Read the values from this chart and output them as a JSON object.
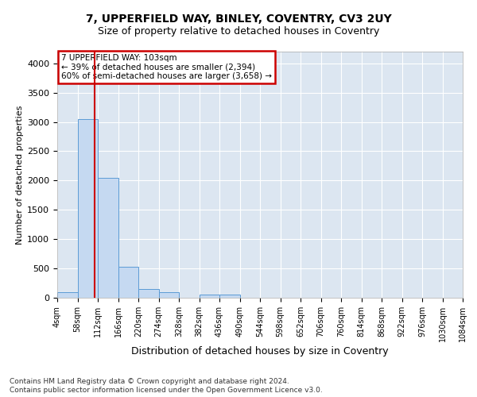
{
  "title1": "7, UPPERFIELD WAY, BINLEY, COVENTRY, CV3 2UY",
  "title2": "Size of property relative to detached houses in Coventry",
  "xlabel": "Distribution of detached houses by size in Coventry",
  "ylabel": "Number of detached properties",
  "footnote1": "Contains HM Land Registry data © Crown copyright and database right 2024.",
  "footnote2": "Contains public sector information licensed under the Open Government Licence v3.0.",
  "annotation_line1": "7 UPPERFIELD WAY: 103sqm",
  "annotation_line2": "← 39% of detached houses are smaller (2,394)",
  "annotation_line3": "60% of semi-detached houses are larger (3,658) →",
  "bar_color": "#c5d9f1",
  "bar_edge_color": "#5b9bd5",
  "red_line_x": 103,
  "bin_edges": [
    4,
    58,
    112,
    166,
    220,
    274,
    328,
    382,
    436,
    490,
    544,
    598,
    652,
    706,
    760,
    814,
    868,
    922,
    976,
    1030,
    1084
  ],
  "bar_heights": [
    100,
    3050,
    2050,
    525,
    150,
    100,
    0,
    50,
    50,
    0,
    0,
    0,
    0,
    0,
    0,
    0,
    0,
    0,
    0,
    0
  ],
  "ylim": [
    0,
    4200
  ],
  "yticks": [
    0,
    500,
    1000,
    1500,
    2000,
    2500,
    3000,
    3500,
    4000
  ],
  "annotation_box_color": "#ffffff",
  "annotation_box_edge": "#cc0000",
  "red_line_color": "#cc0000",
  "plot_bg_color": "#dce6f1",
  "grid_color": "#ffffff",
  "spine_color": "#aaaaaa"
}
